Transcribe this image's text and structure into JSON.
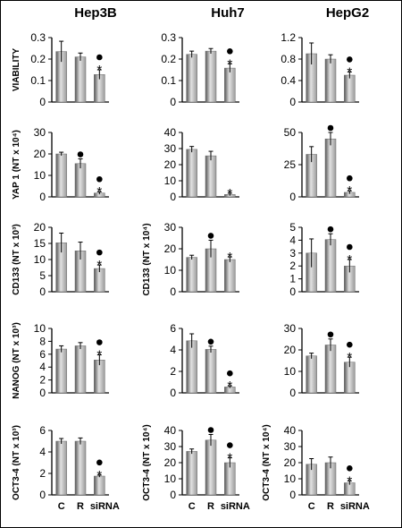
{
  "columns": [
    "Hep3B",
    "Huh7",
    "HepG2"
  ],
  "x_labels": [
    "C",
    "R",
    "siRNA"
  ],
  "style": {
    "bar_color": "#9a9a9a",
    "bar_light": "#e2e2e2",
    "bar_dark": "#555555"
  },
  "chart_data": [
    {
      "type": "bar",
      "row": 0,
      "col": 0,
      "categories": [
        "C",
        "R",
        "siRNA"
      ],
      "ylabel": "VIABILITY",
      "ylim": [
        0,
        0.3
      ],
      "yticks": [
        "0",
        "0.1",
        "0.2",
        "0.3"
      ],
      "values": [
        0.235,
        0.21,
        0.128
      ],
      "errors": [
        0.048,
        0.018,
        0.022
      ],
      "dots": [
        false,
        false,
        true
      ],
      "stars": [
        false,
        false,
        true
      ]
    },
    {
      "type": "bar",
      "row": 0,
      "col": 1,
      "categories": [
        "C",
        "R",
        "siRNA"
      ],
      "ylabel": "",
      "ylim": [
        0,
        0.3
      ],
      "yticks": [
        "0",
        "0.1",
        "0.2",
        "0.3"
      ],
      "values": [
        0.222,
        0.237,
        0.158
      ],
      "errors": [
        0.015,
        0.012,
        0.02
      ],
      "dots": [
        false,
        false,
        true
      ],
      "stars": [
        false,
        false,
        true
      ]
    },
    {
      "type": "bar",
      "row": 0,
      "col": 2,
      "categories": [
        "C",
        "R",
        "siRNA"
      ],
      "ylabel": "",
      "ylim": [
        0,
        1.2
      ],
      "yticks": [
        "0",
        "0.4",
        "0.8",
        "1.2"
      ],
      "values": [
        0.9,
        0.8,
        0.5
      ],
      "errors": [
        0.2,
        0.08,
        0.06
      ],
      "dots": [
        false,
        false,
        true
      ],
      "stars": [
        false,
        false,
        true
      ]
    },
    {
      "type": "bar",
      "row": 1,
      "col": 0,
      "categories": [
        "C",
        "R",
        "siRNA"
      ],
      "ylabel": "YAP 1 (NT x 10⁴)",
      "ylim": [
        0,
        30
      ],
      "yticks": [
        "0",
        "10",
        "20",
        "30"
      ],
      "values": [
        20,
        15.5,
        1.8
      ],
      "errors": [
        0.8,
        2.2,
        0.6
      ],
      "dots": [
        false,
        true,
        true
      ],
      "stars": [
        false,
        false,
        true
      ]
    },
    {
      "type": "bar",
      "row": 1,
      "col": 1,
      "categories": [
        "C",
        "R",
        "siRNA"
      ],
      "ylabel": "",
      "ylim": [
        0,
        40
      ],
      "yticks": [
        "0",
        "10",
        "20",
        "30",
        "40"
      ],
      "values": [
        29.5,
        25.5,
        1.5
      ],
      "errors": [
        1.8,
        2.8,
        0.8
      ],
      "dots": [
        false,
        false,
        false
      ],
      "stars": [
        false,
        false,
        true
      ]
    },
    {
      "type": "bar",
      "row": 1,
      "col": 2,
      "categories": [
        "C",
        "R",
        "siRNA"
      ],
      "ylabel": "",
      "ylim": [
        0,
        50
      ],
      "yticks": [
        "0",
        "25",
        "50"
      ],
      "values": [
        33,
        45,
        3.5
      ],
      "errors": [
        6,
        5,
        1.2
      ],
      "dots": [
        false,
        true,
        true
      ],
      "stars": [
        false,
        false,
        true
      ]
    },
    {
      "type": "bar",
      "row": 2,
      "col": 0,
      "categories": [
        "C",
        "R",
        "siRNA"
      ],
      "ylabel": "CD133 (NT x 10³)",
      "ylim": [
        0,
        20
      ],
      "yticks": [
        "0",
        "5",
        "10",
        "15",
        "20"
      ],
      "values": [
        15.2,
        12.7,
        7.2
      ],
      "errors": [
        3,
        2.7,
        1.1
      ],
      "dots": [
        false,
        false,
        true
      ],
      "stars": [
        false,
        false,
        true
      ]
    },
    {
      "type": "bar",
      "row": 2,
      "col": 1,
      "categories": [
        "C",
        "R",
        "siRNA"
      ],
      "ylabel": "CD133 (NT x 10⁴)",
      "ylim": [
        0,
        30
      ],
      "yticks": [
        "0",
        "10",
        "20",
        "30"
      ],
      "values": [
        16,
        20,
        15
      ],
      "errors": [
        1,
        4,
        1.2
      ],
      "dots": [
        false,
        true,
        false
      ],
      "stars": [
        false,
        false,
        true
      ]
    },
    {
      "type": "bar",
      "row": 2,
      "col": 2,
      "categories": [
        "C",
        "R",
        "siRNA"
      ],
      "ylabel": "",
      "ylim": [
        0,
        5
      ],
      "yticks": [
        "0",
        "1",
        "2",
        "3",
        "4",
        "5"
      ],
      "values": [
        3,
        4.05,
        2
      ],
      "errors": [
        1.1,
        0.45,
        0.5
      ],
      "dots": [
        false,
        true,
        true
      ],
      "stars": [
        false,
        false,
        true
      ]
    },
    {
      "type": "bar",
      "row": 3,
      "col": 0,
      "categories": [
        "C",
        "R",
        "siRNA"
      ],
      "ylabel": "NANOG (NT x 10³)",
      "ylim": [
        0,
        10
      ],
      "yticks": [
        "0",
        "2",
        "4",
        "6",
        "8",
        "10"
      ],
      "values": [
        6.8,
        7.3,
        5.1
      ],
      "errors": [
        0.5,
        0.5,
        0.8
      ],
      "dots": [
        false,
        false,
        true
      ],
      "stars": [
        false,
        false,
        true
      ]
    },
    {
      "type": "bar",
      "row": 3,
      "col": 1,
      "categories": [
        "C",
        "R",
        "siRNA"
      ],
      "ylabel": "",
      "ylim": [
        0,
        6
      ],
      "yticks": [
        "0",
        "2",
        "4",
        "6"
      ],
      "values": [
        4.85,
        4.05,
        0.55
      ],
      "errors": [
        0.65,
        0.3,
        0.1
      ],
      "dots": [
        false,
        true,
        true
      ],
      "stars": [
        false,
        false,
        true
      ]
    },
    {
      "type": "bar",
      "row": 3,
      "col": 2,
      "categories": [
        "C",
        "R",
        "siRNA"
      ],
      "ylabel": "",
      "ylim": [
        0,
        30
      ],
      "yticks": [
        "0",
        "10",
        "20",
        "30"
      ],
      "values": [
        17.2,
        22.3,
        14.3
      ],
      "errors": [
        1.3,
        2.8,
        2.3
      ],
      "dots": [
        false,
        true,
        true
      ],
      "stars": [
        false,
        false,
        true
      ]
    },
    {
      "type": "bar",
      "row": 4,
      "col": 0,
      "categories": [
        "C",
        "R",
        "siRNA"
      ],
      "ylabel": "OCT3-4 (NT x 10³)",
      "ylim": [
        0,
        6
      ],
      "yticks": [
        "0",
        "2",
        "4",
        "6"
      ],
      "values": [
        5,
        5,
        1.75
      ],
      "errors": [
        0.25,
        0.3,
        0.1
      ],
      "dots": [
        false,
        false,
        true
      ],
      "stars": [
        false,
        false,
        true
      ]
    },
    {
      "type": "bar",
      "row": 4,
      "col": 1,
      "categories": [
        "C",
        "R",
        "siRNA"
      ],
      "ylabel": "OCT3-4 (NT x 10⁴)",
      "ylim": [
        0,
        40
      ],
      "yticks": [
        "0",
        "10",
        "20",
        "30",
        "40"
      ],
      "values": [
        27,
        34,
        20
      ],
      "errors": [
        1.5,
        3.5,
        3
      ],
      "dots": [
        false,
        true,
        true
      ],
      "stars": [
        false,
        false,
        true
      ]
    },
    {
      "type": "bar",
      "row": 4,
      "col": 2,
      "categories": [
        "C",
        "R",
        "siRNA"
      ],
      "ylabel": "OCT3-4 (NT x 10⁴)",
      "ylim": [
        0,
        40
      ],
      "yticks": [
        "0",
        "10",
        "20",
        "30",
        "40"
      ],
      "values": [
        19,
        20,
        7.5
      ],
      "errors": [
        3.5,
        3.5,
        1.2
      ],
      "dots": [
        false,
        false,
        true
      ],
      "stars": [
        false,
        false,
        true
      ]
    }
  ]
}
